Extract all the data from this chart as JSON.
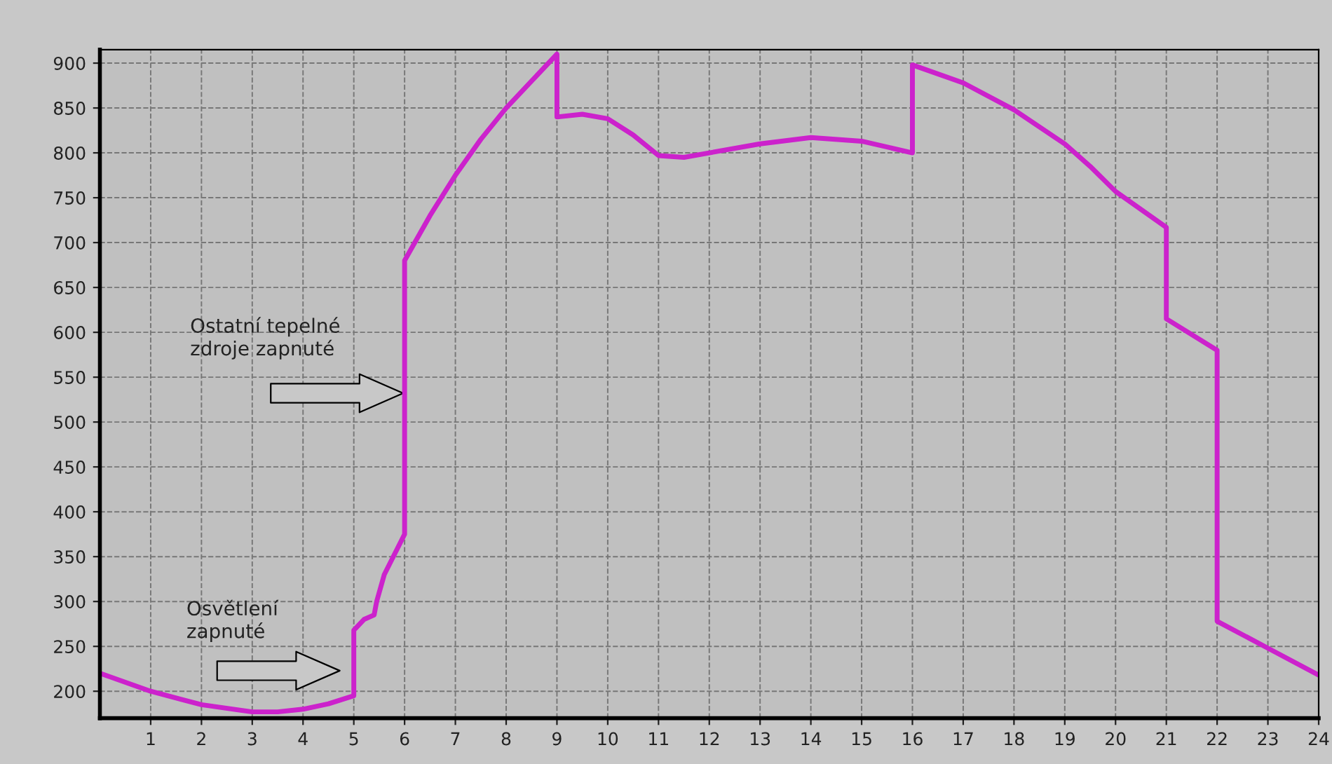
{
  "chart_data": {
    "type": "line",
    "series": [
      {
        "color": "#cc22cc",
        "x": [
          0,
          1,
          2,
          3,
          3.5,
          4,
          4.5,
          5,
          5,
          5.2,
          5.4,
          5.45,
          5.6,
          6,
          6,
          6.5,
          7,
          7.5,
          8,
          8.5,
          9,
          9,
          9.5,
          10,
          10.5,
          11,
          11.5,
          12,
          13,
          14,
          15,
          16,
          16,
          17,
          18,
          19,
          19.5,
          20,
          21,
          21,
          22,
          22,
          23,
          24
        ],
        "values": [
          220,
          200,
          185,
          177,
          177,
          180,
          186,
          195,
          268,
          280,
          285,
          300,
          330,
          375,
          680,
          730,
          775,
          815,
          850,
          880,
          910,
          840,
          843,
          838,
          820,
          797,
          795,
          800,
          810,
          817,
          813,
          800,
          898,
          878,
          848,
          810,
          785,
          757,
          717,
          615,
          580,
          278,
          248,
          218
        ]
      }
    ],
    "xlim": [
      0,
      24
    ],
    "xticks": [
      1,
      2,
      3,
      4,
      5,
      6,
      7,
      8,
      9,
      10,
      11,
      12,
      13,
      14,
      15,
      16,
      17,
      18,
      19,
      20,
      21,
      22,
      23,
      24
    ],
    "ylim": [
      170,
      915
    ],
    "yticks": [
      200,
      250,
      300,
      350,
      400,
      450,
      500,
      550,
      600,
      650,
      700,
      750,
      800,
      850,
      900
    ],
    "grid": true,
    "marker": "none",
    "line_style": "solid",
    "annotations": [
      "Ostatní tepelné\nzdroje zapnuté",
      "Osvětlení\nzapnuté"
    ]
  }
}
